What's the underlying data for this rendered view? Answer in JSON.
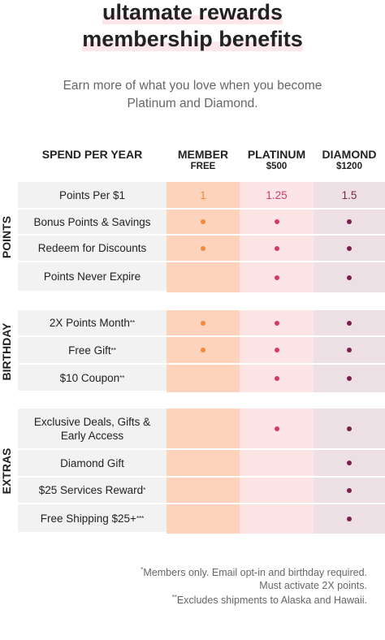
{
  "header": {
    "title_lines": [
      "ultamate rewards",
      "membership benefits"
    ],
    "subtitle_lines": [
      "Earn more of what you love when you become",
      "Platinum and Diamond."
    ]
  },
  "table": {
    "benefit_header": "SPEND PER YEAR",
    "tiers": [
      {
        "name": "MEMBER",
        "price": "FREE",
        "color": "#f08a3c",
        "bg": "#fdd3bb"
      },
      {
        "name": "PLATINUM",
        "price": "$500",
        "color": "#d23a68",
        "bg": "#fde5e5"
      },
      {
        "name": "DIAMOND",
        "price": "$1200",
        "color": "#7b1f4c",
        "bg": "#ece0e5"
      }
    ],
    "sections": [
      {
        "label": "POINTS",
        "rows": [
          {
            "benefit": "Points Per $1",
            "cells": [
              "1",
              "1.25",
              "1.5"
            ]
          },
          {
            "benefit": "Bonus Points & Savings",
            "cells": [
              true,
              true,
              true
            ]
          },
          {
            "benefit": "Redeem for Discounts",
            "cells": [
              true,
              true,
              true
            ]
          },
          {
            "benefit": "Points Never Expire",
            "cells": [
              false,
              true,
              true
            ]
          }
        ]
      },
      {
        "label": "BIRTHDAY",
        "rows": [
          {
            "benefit": "2X Points Month",
            "note": "**",
            "cells": [
              true,
              true,
              true
            ]
          },
          {
            "benefit": "Free Gift",
            "note": "**",
            "cells": [
              true,
              true,
              true
            ]
          },
          {
            "benefit": "$10 Coupon",
            "note": "**",
            "cells": [
              false,
              true,
              true
            ]
          }
        ]
      },
      {
        "label": "EXTRAS",
        "rows": [
          {
            "benefit": "Exclusive Deals, Gifts & Early Access",
            "cells": [
              false,
              true,
              true
            ]
          },
          {
            "benefit": "Diamond Gift",
            "cells": [
              false,
              false,
              true
            ]
          },
          {
            "benefit": "$25 Services Reward",
            "note": "*",
            "cells": [
              false,
              false,
              true
            ]
          },
          {
            "benefit": "Free Shipping $25+",
            "note": "***",
            "cells": [
              false,
              false,
              true
            ]
          }
        ]
      }
    ]
  },
  "footnotes": [
    {
      "mark": "*",
      "text": "Members only. Email opt-in and birthday required."
    },
    {
      "text": "Must activate 2X points."
    },
    {
      "mark": "**",
      "text": "Excludes shipments to Alaska and Hawaii."
    }
  ]
}
